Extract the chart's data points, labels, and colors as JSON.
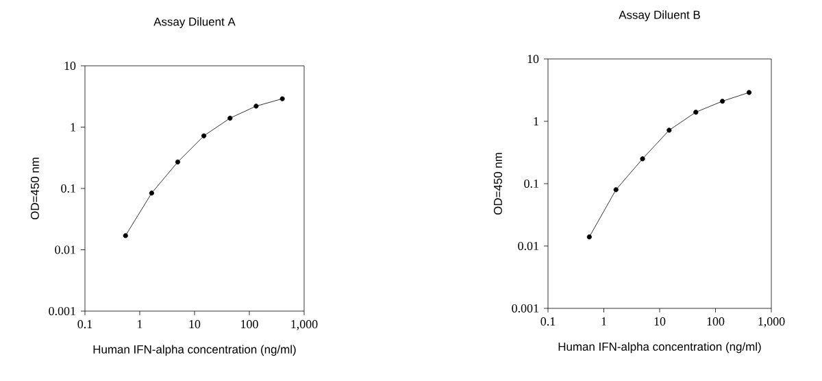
{
  "chart_data": [
    {
      "type": "line",
      "title": "Assay Diluent A",
      "xlabel": "Human IFN-alpha concentration (ng/ml)",
      "ylabel": "OD=450 nm",
      "log": "xy",
      "marker": "circle",
      "line_style": "solid",
      "x": [
        0.55,
        1.65,
        4.94,
        14.8,
        44.4,
        133,
        400
      ],
      "series": [
        {
          "color": "#000000",
          "values": [
            0.017,
            0.084,
            0.27,
            0.72,
            1.4,
            2.2,
            2.9
          ]
        }
      ],
      "xlim": [
        0.1,
        1000
      ],
      "xticks": [
        0.1,
        1,
        10,
        100,
        {
          "value": 1000,
          "label": "1,000"
        }
      ],
      "ylim": [
        0.001,
        10
      ],
      "yticks": [
        0.001,
        0.01,
        0.1,
        1,
        10
      ]
    },
    {
      "type": "line",
      "title": "Assay Diluent B",
      "xlabel": "Human IFN-alpha concentration (ng/ml)",
      "ylabel": "OD=450 nm",
      "log": "xy",
      "marker": "circle",
      "line_style": "solid",
      "x": [
        0.55,
        1.65,
        4.94,
        14.8,
        44.4,
        133,
        400
      ],
      "series": [
        {
          "color": "#000000",
          "values": [
            0.014,
            0.08,
            0.25,
            0.72,
            1.4,
            2.1,
            2.9
          ]
        }
      ],
      "xlim": [
        0.1,
        1000
      ],
      "xticks": [
        0.1,
        1,
        10,
        100,
        {
          "value": 1000,
          "label": "1,000"
        }
      ],
      "ylim": [
        0.001,
        10
      ],
      "yticks": [
        0.001,
        0.01,
        0.1,
        1,
        10
      ]
    }
  ]
}
